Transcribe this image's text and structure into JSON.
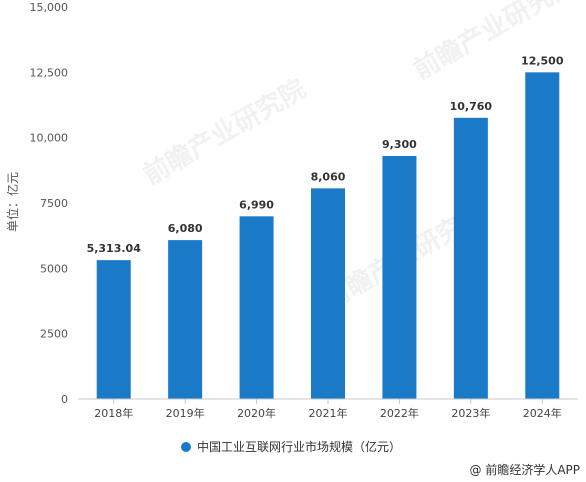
{
  "chart_data": {
    "type": "bar",
    "categories": [
      "2018年",
      "2019年",
      "2020年",
      "2021年",
      "2022年",
      "2023年",
      "2024年"
    ],
    "values": [
      5313.04,
      6080,
      6990,
      8060,
      9300,
      10760,
      12500
    ],
    "data_labels": [
      "5,313.04",
      "6,080",
      "6,990",
      "8,060",
      "9,300",
      "10,760",
      "12,500"
    ],
    "ylabel": "单位：亿元",
    "ylim": [
      0,
      15000
    ],
    "yticks": [
      0,
      2500,
      5000,
      7500,
      10000,
      12500,
      15000
    ],
    "ytick_labels": [
      "0",
      "2500",
      "5000",
      "7500",
      "10,000",
      "12,500",
      "15,000"
    ],
    "grid": false,
    "legend_position": "bottom",
    "series": [
      {
        "name": "中国工业互联网行业市场规模（亿元）",
        "color": "#1a7ac8"
      }
    ]
  },
  "credit": "@ 前瞻经济学人APP",
  "watermark": "前瞻产业研究院"
}
